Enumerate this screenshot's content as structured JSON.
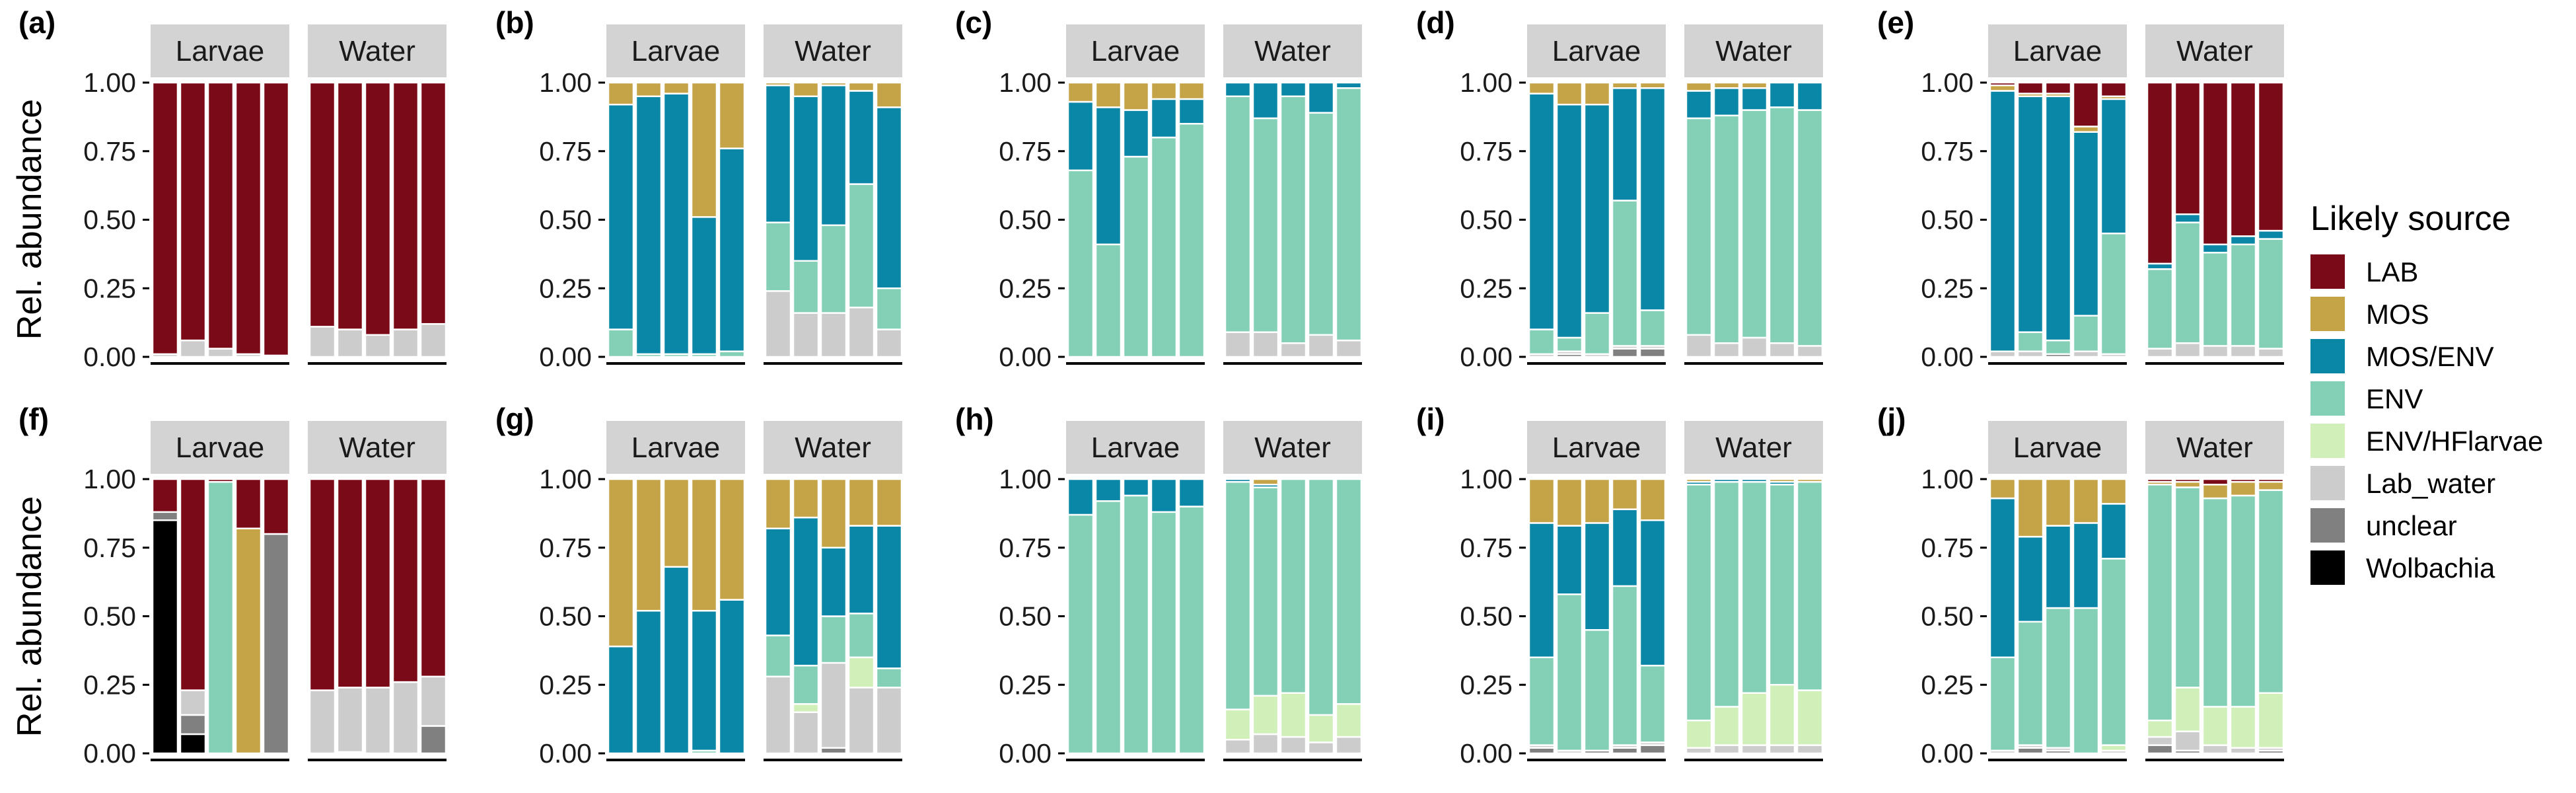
{
  "chart_data": {
    "type": "bar",
    "stacked": true,
    "ylabel": "Rel. abundance",
    "ylim": [
      0,
      1
    ],
    "yticks": [
      "0.00",
      "0.25",
      "0.50",
      "0.75",
      "1.00"
    ],
    "facets": [
      "Larvae",
      "Water"
    ],
    "legend": {
      "title": "Likely source",
      "placement": "right",
      "items": [
        {
          "name": "LAB",
          "color": "#7b0a18"
        },
        {
          "name": "MOS",
          "color": "#c5a448"
        },
        {
          "name": "MOS/ENV",
          "color": "#0a86a6"
        },
        {
          "name": "ENV",
          "color": "#84d0b7"
        },
        {
          "name": "ENV/HFlarvae",
          "color": "#d1efb8"
        },
        {
          "name": "Lab_water",
          "color": "#cccccc"
        },
        {
          "name": "unclear",
          "color": "#808080"
        },
        {
          "name": "Wolbachia",
          "color": "#000000"
        }
      ]
    },
    "panels": [
      {
        "label": "(a)",
        "Larvae": [
          {
            "Lab_water": 0.01,
            "LAB": 0.99
          },
          {
            "Lab_water": 0.06,
            "LAB": 0.94
          },
          {
            "Lab_water": 0.03,
            "LAB": 0.97
          },
          {
            "Lab_water": 0.01,
            "LAB": 0.99
          },
          {
            "Lab_water": 0.005,
            "LAB": 0.995
          }
        ],
        "Water": [
          {
            "Lab_water": 0.11,
            "LAB": 0.89
          },
          {
            "Lab_water": 0.1,
            "LAB": 0.9
          },
          {
            "Lab_water": 0.08,
            "LAB": 0.92
          },
          {
            "Lab_water": 0.1,
            "LAB": 0.9
          },
          {
            "Lab_water": 0.12,
            "LAB": 0.88
          }
        ]
      },
      {
        "label": "(b)",
        "Larvae": [
          {
            "ENV": 0.1,
            "MOS/ENV": 0.82,
            "MOS": 0.08
          },
          {
            "ENV": 0.01,
            "MOS/ENV": 0.94,
            "MOS": 0.05
          },
          {
            "ENV": 0.01,
            "MOS/ENV": 0.95,
            "MOS": 0.04
          },
          {
            "ENV": 0.01,
            "MOS/ENV": 0.5,
            "MOS": 0.49
          },
          {
            "ENV": 0.02,
            "MOS/ENV": 0.74,
            "MOS": 0.24
          }
        ],
        "Water": [
          {
            "Lab_water": 0.24,
            "ENV": 0.25,
            "MOS/ENV": 0.5,
            "MOS": 0.01
          },
          {
            "Lab_water": 0.16,
            "ENV": 0.19,
            "MOS/ENV": 0.6,
            "MOS": 0.05
          },
          {
            "Lab_water": 0.16,
            "ENV": 0.32,
            "MOS/ENV": 0.51,
            "MOS": 0.01
          },
          {
            "Lab_water": 0.18,
            "ENV": 0.45,
            "MOS/ENV": 0.34,
            "MOS": 0.03
          },
          {
            "Lab_water": 0.1,
            "ENV": 0.15,
            "MOS/ENV": 0.66,
            "MOS": 0.09
          }
        ]
      },
      {
        "label": "(c)",
        "Larvae": [
          {
            "ENV": 0.68,
            "MOS/ENV": 0.25,
            "MOS": 0.07
          },
          {
            "ENV": 0.41,
            "MOS/ENV": 0.5,
            "MOS": 0.09
          },
          {
            "ENV": 0.73,
            "MOS/ENV": 0.17,
            "MOS": 0.1
          },
          {
            "ENV": 0.8,
            "MOS/ENV": 0.14,
            "MOS": 0.06
          },
          {
            "ENV": 0.85,
            "MOS/ENV": 0.09,
            "MOS": 0.06
          }
        ],
        "Water": [
          {
            "Lab_water": 0.09,
            "ENV": 0.86,
            "MOS/ENV": 0.05
          },
          {
            "Lab_water": 0.09,
            "ENV": 0.78,
            "MOS/ENV": 0.13
          },
          {
            "Lab_water": 0.05,
            "ENV": 0.9,
            "MOS/ENV": 0.05
          },
          {
            "Lab_water": 0.08,
            "ENV": 0.81,
            "MOS/ENV": 0.11
          },
          {
            "Lab_water": 0.06,
            "ENV": 0.92,
            "MOS/ENV": 0.02
          }
        ]
      },
      {
        "label": "(d)",
        "Larvae": [
          {
            "Lab_water": 0.01,
            "ENV": 0.09,
            "MOS/ENV": 0.86,
            "MOS": 0.04
          },
          {
            "unclear": 0.01,
            "Lab_water": 0.01,
            "ENV": 0.05,
            "MOS/ENV": 0.85,
            "MOS": 0.08
          },
          {
            "Lab_water": 0.01,
            "ENV": 0.15,
            "MOS/ENV": 0.76,
            "MOS": 0.08
          },
          {
            "unclear": 0.03,
            "Lab_water": 0.01,
            "ENV": 0.53,
            "MOS/ENV": 0.41,
            "MOS": 0.02
          },
          {
            "unclear": 0.03,
            "Lab_water": 0.01,
            "ENV": 0.13,
            "MOS/ENV": 0.81,
            "MOS": 0.02
          }
        ],
        "Water": [
          {
            "Lab_water": 0.08,
            "ENV": 0.79,
            "MOS/ENV": 0.1,
            "MOS": 0.03
          },
          {
            "Lab_water": 0.05,
            "ENV": 0.83,
            "MOS/ENV": 0.1,
            "MOS": 0.02
          },
          {
            "Lab_water": 0.07,
            "ENV": 0.83,
            "MOS/ENV": 0.08,
            "MOS": 0.02
          },
          {
            "Lab_water": 0.05,
            "ENV": 0.86,
            "MOS/ENV": 0.09
          },
          {
            "Lab_water": 0.04,
            "ENV": 0.86,
            "MOS/ENV": 0.1
          }
        ]
      },
      {
        "label": "(e)",
        "Larvae": [
          {
            "Lab_water": 0.02,
            "MOS/ENV": 0.95,
            "MOS": 0.02,
            "LAB": 0.01
          },
          {
            "Lab_water": 0.02,
            "ENV": 0.07,
            "MOS/ENV": 0.86,
            "MOS": 0.01,
            "LAB": 0.04
          },
          {
            "unclear": 0.01,
            "ENV": 0.05,
            "MOS/ENV": 0.89,
            "MOS": 0.01,
            "LAB": 0.04
          },
          {
            "Lab_water": 0.02,
            "ENV": 0.13,
            "MOS/ENV": 0.67,
            "MOS": 0.02,
            "LAB": 0.16
          },
          {
            "Lab_water": 0.01,
            "ENV": 0.44,
            "MOS/ENV": 0.49,
            "MOS": 0.01,
            "LAB": 0.05
          }
        ],
        "Water": [
          {
            "Lab_water": 0.03,
            "ENV": 0.29,
            "MOS/ENV": 0.02,
            "LAB": 0.66
          },
          {
            "Lab_water": 0.05,
            "ENV": 0.44,
            "MOS/ENV": 0.03,
            "LAB": 0.48
          },
          {
            "Lab_water": 0.04,
            "ENV": 0.34,
            "MOS/ENV": 0.03,
            "LAB": 0.59
          },
          {
            "Lab_water": 0.04,
            "ENV": 0.37,
            "MOS/ENV": 0.03,
            "LAB": 0.56
          },
          {
            "Lab_water": 0.03,
            "ENV": 0.4,
            "MOS/ENV": 0.03,
            "LAB": 0.54
          }
        ]
      },
      {
        "label": "(f)",
        "Larvae": [
          {
            "Wolbachia": 0.85,
            "unclear": 0.03,
            "LAB": 0.12
          },
          {
            "Wolbachia": 0.07,
            "unclear": 0.07,
            "Lab_water": 0.09,
            "LAB": 0.77
          },
          {
            "ENV": 0.99,
            "LAB": 0.01
          },
          {
            "MOS": 0.82,
            "LAB": 0.18
          },
          {
            "unclear": 0.8,
            "LAB": 0.2
          }
        ],
        "Water": [
          {
            "Lab_water": 0.23,
            "LAB": 0.77
          },
          {
            "unclear": 0.005,
            "Lab_water": 0.235,
            "LAB": 0.76
          },
          {
            "Lab_water": 0.24,
            "LAB": 0.76
          },
          {
            "Lab_water": 0.26,
            "LAB": 0.74
          },
          {
            "unclear": 0.1,
            "Lab_water": 0.18,
            "LAB": 0.72
          }
        ]
      },
      {
        "label": "(g)",
        "Larvae": [
          {
            "MOS/ENV": 0.39,
            "MOS": 0.61
          },
          {
            "MOS/ENV": 0.52,
            "MOS": 0.48
          },
          {
            "MOS/ENV": 0.68,
            "MOS": 0.32
          },
          {
            "ENV": 0.01,
            "MOS/ENV": 0.51,
            "MOS": 0.48
          },
          {
            "MOS/ENV": 0.56,
            "MOS": 0.44
          }
        ],
        "Water": [
          {
            "Lab_water": 0.28,
            "ENV": 0.15,
            "MOS/ENV": 0.39,
            "MOS": 0.18
          },
          {
            "Lab_water": 0.15,
            "ENV/HFlarvae": 0.03,
            "ENV": 0.14,
            "MOS/ENV": 0.54,
            "MOS": 0.14
          },
          {
            "unclear": 0.02,
            "Lab_water": 0.31,
            "ENV": 0.17,
            "MOS/ENV": 0.25,
            "MOS": 0.25
          },
          {
            "Lab_water": 0.24,
            "ENV/HFlarvae": 0.11,
            "ENV": 0.16,
            "MOS/ENV": 0.32,
            "MOS": 0.17
          },
          {
            "Lab_water": 0.24,
            "ENV": 0.07,
            "MOS/ENV": 0.52,
            "MOS": 0.17
          }
        ]
      },
      {
        "label": "(h)",
        "Larvae": [
          {
            "ENV": 0.87,
            "MOS/ENV": 0.13
          },
          {
            "ENV": 0.92,
            "MOS/ENV": 0.08
          },
          {
            "ENV": 0.94,
            "MOS/ENV": 0.06
          },
          {
            "ENV": 0.88,
            "MOS/ENV": 0.12
          },
          {
            "ENV": 0.9,
            "MOS/ENV": 0.1
          }
        ],
        "Water": [
          {
            "Lab_water": 0.05,
            "ENV/HFlarvae": 0.11,
            "ENV": 0.83,
            "MOS/ENV": 0.01
          },
          {
            "Lab_water": 0.07,
            "ENV/HFlarvae": 0.14,
            "ENV": 0.76,
            "MOS/ENV": 0.01,
            "MOS": 0.02
          },
          {
            "Lab_water": 0.06,
            "ENV/HFlarvae": 0.16,
            "ENV": 0.78
          },
          {
            "Lab_water": 0.04,
            "ENV/HFlarvae": 0.1,
            "ENV": 0.86
          },
          {
            "Lab_water": 0.06,
            "ENV/HFlarvae": 0.12,
            "ENV": 0.82
          }
        ]
      },
      {
        "label": "(i)",
        "Larvae": [
          {
            "unclear": 0.02,
            "Lab_water": 0.01,
            "ENV": 0.32,
            "MOS/ENV": 0.49,
            "MOS": 0.16
          },
          {
            "Lab_water": 0.01,
            "ENV": 0.57,
            "MOS/ENV": 0.25,
            "MOS": 0.17
          },
          {
            "unclear": 0.01,
            "ENV": 0.44,
            "MOS/ENV": 0.39,
            "MOS": 0.16
          },
          {
            "unclear": 0.02,
            "Lab_water": 0.01,
            "ENV": 0.58,
            "MOS/ENV": 0.28,
            "MOS": 0.11
          },
          {
            "unclear": 0.03,
            "Lab_water": 0.01,
            "ENV": 0.28,
            "MOS/ENV": 0.53,
            "MOS": 0.15
          }
        ],
        "Water": [
          {
            "Lab_water": 0.02,
            "ENV/HFlarvae": 0.1,
            "ENV": 0.86,
            "MOS/ENV": 0.01,
            "MOS": 0.01
          },
          {
            "Lab_water": 0.03,
            "ENV/HFlarvae": 0.14,
            "ENV": 0.82,
            "MOS/ENV": 0.01
          },
          {
            "Lab_water": 0.03,
            "ENV/HFlarvae": 0.19,
            "ENV": 0.77,
            "MOS/ENV": 0.01
          },
          {
            "Lab_water": 0.03,
            "ENV/HFlarvae": 0.22,
            "ENV": 0.73,
            "MOS/ENV": 0.01,
            "MOS": 0.01
          },
          {
            "Lab_water": 0.03,
            "ENV/HFlarvae": 0.2,
            "ENV": 0.76,
            "MOS": 0.01
          }
        ]
      },
      {
        "label": "(j)",
        "Larvae": [
          {
            "Lab_water": 0.01,
            "ENV": 0.34,
            "MOS/ENV": 0.58,
            "MOS": 0.07
          },
          {
            "unclear": 0.02,
            "Lab_water": 0.01,
            "ENV": 0.45,
            "MOS/ENV": 0.31,
            "MOS": 0.21
          },
          {
            "unclear": 0.01,
            "Lab_water": 0.01,
            "ENV": 0.51,
            "MOS/ENV": 0.3,
            "MOS": 0.17
          },
          {
            "ENV": 0.53,
            "MOS/ENV": 0.31,
            "MOS": 0.16
          },
          {
            "Lab_water": 0.01,
            "ENV/HFlarvae": 0.02,
            "ENV": 0.68,
            "MOS/ENV": 0.2,
            "MOS": 0.09
          }
        ],
        "Water": [
          {
            "unclear": 0.03,
            "Lab_water": 0.03,
            "ENV/HFlarvae": 0.06,
            "ENV": 0.86,
            "MOS": 0.01,
            "LAB": 0.01
          },
          {
            "unclear": 0.01,
            "Lab_water": 0.07,
            "ENV/HFlarvae": 0.16,
            "ENV": 0.73,
            "MOS": 0.02,
            "LAB": 0.01
          },
          {
            "Lab_water": 0.03,
            "ENV/HFlarvae": 0.14,
            "ENV": 0.76,
            "MOS": 0.05,
            "LAB": 0.02
          },
          {
            "Lab_water": 0.02,
            "ENV/HFlarvae": 0.15,
            "ENV": 0.77,
            "MOS": 0.05,
            "LAB": 0.01
          },
          {
            "unclear": 0.01,
            "Lab_water": 0.01,
            "ENV/HFlarvae": 0.2,
            "ENV": 0.74,
            "MOS": 0.03,
            "LAB": 0.01
          }
        ]
      }
    ]
  }
}
